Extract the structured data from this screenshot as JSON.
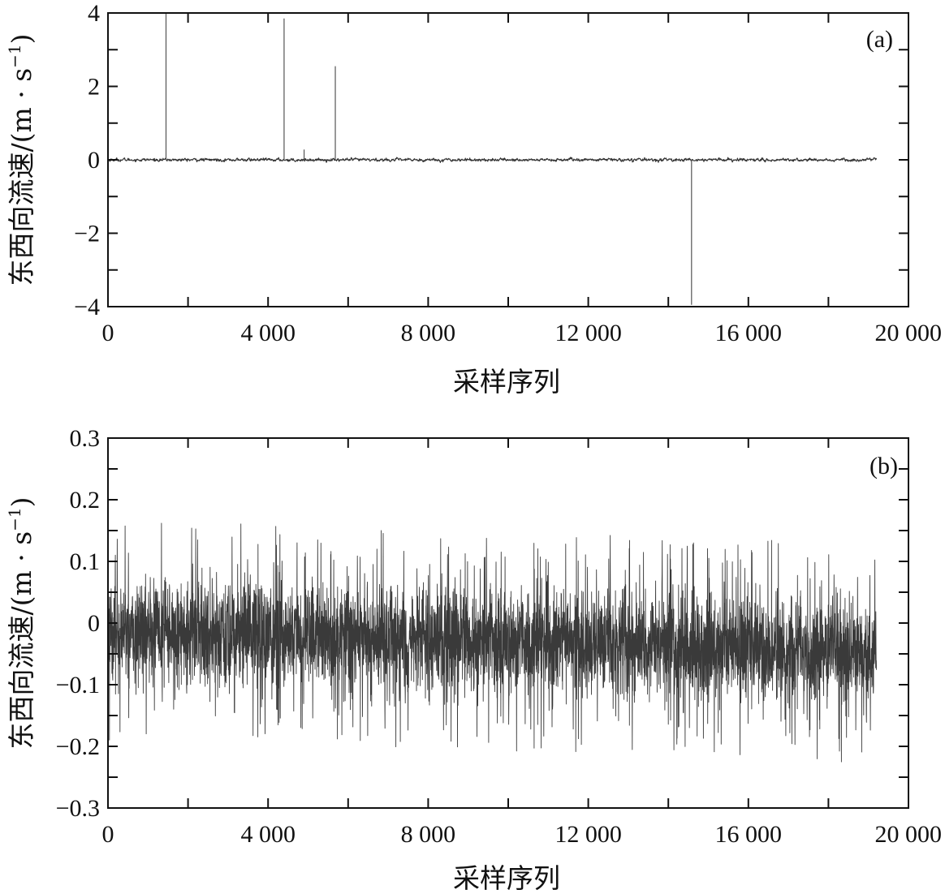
{
  "chart_data": [
    {
      "type": "line",
      "panel_label": "(a)",
      "xlabel": "采样序列",
      "ylabel": "东西向流速/(m · s",
      "ylabel_sup": "−1",
      "ylabel_close": ")",
      "xlim": [
        0,
        20000
      ],
      "ylim": [
        -4,
        4
      ],
      "xticks": [
        0,
        4000,
        8000,
        12000,
        16000,
        20000
      ],
      "xtick_labels": [
        "0",
        "4 000",
        "8 000",
        "12 000",
        "16 000",
        "20 000"
      ],
      "yticks": [
        4,
        2,
        0,
        -2,
        -4
      ],
      "ytick_labels": [
        "4",
        "2",
        "0",
        "−2",
        "−4"
      ],
      "grid": false,
      "series": [
        {
          "color": "#333333",
          "n_samples": 19200,
          "noise_amplitude": 0.06,
          "mean": 0.0,
          "spikes": [
            {
              "x": 1450,
              "y": 4.0
            },
            {
              "x": 4400,
              "y": 3.85
            },
            {
              "x": 5680,
              "y": 2.55
            },
            {
              "x": 4900,
              "y": 0.28
            },
            {
              "x": 14580,
              "y": -3.95
            }
          ]
        }
      ]
    },
    {
      "type": "line",
      "panel_label": "(b)",
      "xlabel": "采样序列",
      "ylabel": "东西向流速/(m · s",
      "ylabel_sup": "−1",
      "ylabel_close": ")",
      "xlim": [
        0,
        20000
      ],
      "ylim": [
        -0.3,
        0.3
      ],
      "xticks": [
        0,
        4000,
        8000,
        12000,
        16000,
        20000
      ],
      "xtick_labels": [
        "0",
        "4 000",
        "8 000",
        "12 000",
        "16 000",
        "20 000"
      ],
      "yticks": [
        0.3,
        0.2,
        0.1,
        0,
        -0.1,
        -0.2,
        -0.3
      ],
      "ytick_labels": [
        "0.3",
        "0.2",
        "0.1",
        "0",
        "−0.1",
        "−0.2",
        "−0.3"
      ],
      "grid": false,
      "series": [
        {
          "color": "#3a3a3a",
          "n_samples": 19200,
          "mean_start": -0.01,
          "mean_end": -0.05,
          "noise_amplitude": 0.075,
          "max_value": 0.2,
          "min_value": -0.24
        }
      ]
    }
  ]
}
